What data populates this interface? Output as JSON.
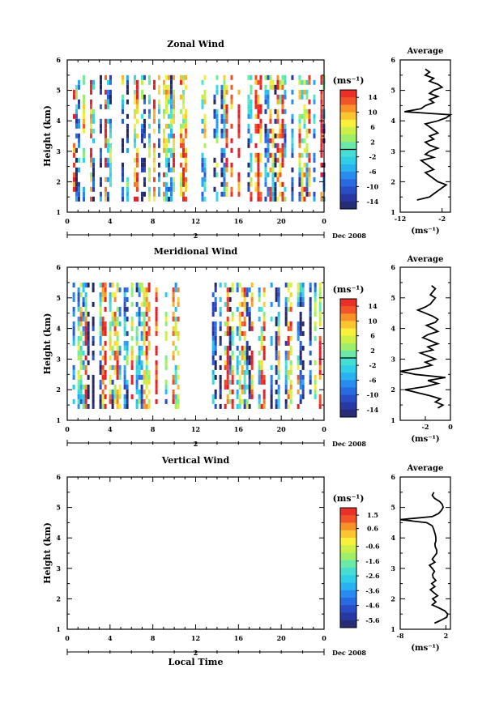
{
  "figure": {
    "date_label": "Dec 2008",
    "xlabel_bottom": "Local Time",
    "avg_title": "Average",
    "unit_label": "(ms⁻¹)",
    "colorbar_unit": "(ms⁻¹)",
    "day_label": "2"
  },
  "chart_data": [
    {
      "type": "heatmap",
      "title": "Zonal Wind",
      "ylabel": "Height (km)",
      "x_ticks": [
        "0",
        "4",
        "8",
        "12",
        "16",
        "20",
        "0"
      ],
      "xlim": [
        0,
        24
      ],
      "y_ticks": [
        "1",
        "2",
        "3",
        "4",
        "5",
        "6"
      ],
      "ylim": [
        1,
        6
      ],
      "data_coverage_hours": [
        [
          0.3,
          11.4
        ],
        [
          12.3,
          24
        ]
      ],
      "colorbar": {
        "ticks": [
          "14",
          "10",
          "6",
          "2",
          "-2",
          "-6",
          "-10",
          "-14"
        ],
        "range": [
          -16,
          16
        ]
      },
      "average": {
        "title": "Average",
        "xlabel": "(ms⁻¹)",
        "x_ticks": [
          "-12",
          "-2"
        ],
        "xlim": [
          -12,
          0
        ],
        "y_ticks": [
          "1",
          "2",
          "3",
          "4",
          "5",
          "6"
        ],
        "height": [
          1.4,
          1.5,
          1.6,
          1.7,
          1.8,
          1.9,
          2.0,
          2.1,
          2.2,
          2.3,
          2.4,
          2.5,
          2.6,
          2.7,
          2.8,
          2.9,
          3.0,
          3.1,
          3.2,
          3.3,
          3.4,
          3.5,
          3.6,
          3.7,
          3.8,
          3.9,
          4.0,
          4.1,
          4.2,
          4.3,
          4.4,
          4.5,
          4.6,
          4.7,
          4.8,
          4.9,
          5.0,
          5.1,
          5.2,
          5.3,
          5.4,
          5.5,
          5.6,
          5.7
        ],
        "value": [
          -8,
          -5,
          -4,
          -3,
          -2,
          -1,
          -3,
          -4,
          -5,
          -6,
          -4,
          -5,
          -6,
          -7,
          -4,
          -6,
          -5,
          -3,
          -5,
          -6,
          -4,
          -5,
          -3,
          -4,
          -5,
          -6,
          -3,
          -1,
          0,
          -11,
          -7,
          -6,
          -4,
          -5,
          -3,
          -5,
          -4,
          -2,
          -3,
          -5,
          -4,
          -6,
          -5,
          -6
        ]
      }
    },
    {
      "type": "heatmap",
      "title": "Meridional Wind",
      "ylabel": "Height (km)",
      "x_ticks": [
        "0",
        "4",
        "8",
        "12",
        "16",
        "20",
        "0"
      ],
      "xlim": [
        0,
        24
      ],
      "y_ticks": [
        "1",
        "2",
        "3",
        "4",
        "5",
        "6"
      ],
      "ylim": [
        1,
        6
      ],
      "data_coverage_hours": [
        [
          0.5,
          11.0
        ],
        [
          13.3,
          24
        ]
      ],
      "colorbar": {
        "ticks": [
          "14",
          "10",
          "6",
          "2",
          "-2",
          "-6",
          "-10",
          "-14"
        ],
        "range": [
          -16,
          16
        ]
      },
      "average": {
        "title": "Average",
        "xlabel": "(ms⁻¹)",
        "x_ticks": [
          "-2",
          "0"
        ],
        "xlim": [
          -4,
          0
        ],
        "y_ticks": [
          "1",
          "2",
          "3",
          "4",
          "5",
          "6"
        ],
        "height": [
          1.4,
          1.5,
          1.6,
          1.7,
          1.8,
          1.9,
          2.0,
          2.1,
          2.2,
          2.3,
          2.4,
          2.5,
          2.6,
          2.7,
          2.8,
          2.9,
          3.0,
          3.1,
          3.2,
          3.3,
          3.4,
          3.5,
          3.6,
          3.7,
          3.8,
          3.9,
          4.0,
          4.1,
          4.2,
          4.3,
          4.4,
          4.5,
          4.6,
          4.7,
          4.8,
          4.9,
          5.0,
          5.1,
          5.2,
          5.3,
          5.4
        ],
        "value": [
          -1.0,
          -0.6,
          -1.2,
          -0.8,
          -1.6,
          -2.6,
          -3.6,
          -2.0,
          -1.0,
          -1.8,
          -0.4,
          -2.8,
          -4.0,
          -2.5,
          -1.5,
          -2.0,
          -1.2,
          -1.8,
          -2.4,
          -1.4,
          -1.8,
          -1.0,
          -1.6,
          -2.2,
          -1.8,
          -1.0,
          -1.4,
          -1.9,
          -1.2,
          -1.0,
          -1.4,
          -2.0,
          -2.6,
          -2.0,
          -1.6,
          -1.4,
          -1.2,
          -1.6,
          -1.4,
          -1.2,
          -1.5
        ]
      }
    },
    {
      "type": "heatmap",
      "title": "Vertical Wind",
      "ylabel": "Height (km)",
      "xlabel": "Local Time",
      "x_ticks": [
        "0",
        "4",
        "8",
        "12",
        "16",
        "20",
        "0"
      ],
      "xlim": [
        0,
        24
      ],
      "y_ticks": [
        "1",
        "2",
        "3",
        "4",
        "5",
        "6"
      ],
      "ylim": [
        1,
        6
      ],
      "data_coverage_hours": [],
      "colorbar": {
        "ticks": [
          "1.5",
          "0.6",
          "-0.6",
          "-1.6",
          "-2.6",
          "-3.6",
          "-4.6",
          "-5.6"
        ],
        "range": [
          -6.1,
          2.0
        ]
      },
      "average": {
        "title": "Average",
        "xlabel": "(ms⁻¹)",
        "x_ticks": [
          "-8",
          "2"
        ],
        "xlim": [
          -8,
          3
        ],
        "y_ticks": [
          "1",
          "2",
          "3",
          "4",
          "5",
          "6"
        ],
        "height": [
          1.2,
          1.3,
          1.4,
          1.5,
          1.6,
          1.7,
          1.8,
          1.9,
          2.0,
          2.1,
          2.2,
          2.3,
          2.4,
          2.5,
          2.6,
          2.7,
          2.8,
          2.9,
          3.0,
          3.1,
          3.2,
          3.3,
          3.4,
          3.5,
          3.6,
          3.7,
          3.8,
          3.9,
          4.0,
          4.1,
          4.2,
          4.3,
          4.4,
          4.5,
          4.6,
          4.7,
          4.8,
          4.9,
          5.0,
          5.1,
          5.2,
          5.3,
          5.4,
          5.5
        ],
        "value": [
          -0.5,
          1.0,
          2.2,
          2.4,
          1.8,
          0.5,
          -1.0,
          -0.2,
          -0.9,
          0.2,
          -0.6,
          -1.4,
          -0.4,
          -1.1,
          -0.2,
          -0.8,
          -0.9,
          -0.5,
          -1.0,
          -1.6,
          -0.4,
          -1.0,
          -0.5,
          0.0,
          0.0,
          -0.3,
          -0.4,
          -0.2,
          -0.2,
          -0.3,
          -0.5,
          -0.7,
          -1.0,
          -2.2,
          -8.0,
          -1.0,
          0.4,
          1.0,
          1.4,
          1.2,
          0.6,
          -0.5,
          -1.0,
          -0.6
        ]
      }
    }
  ]
}
